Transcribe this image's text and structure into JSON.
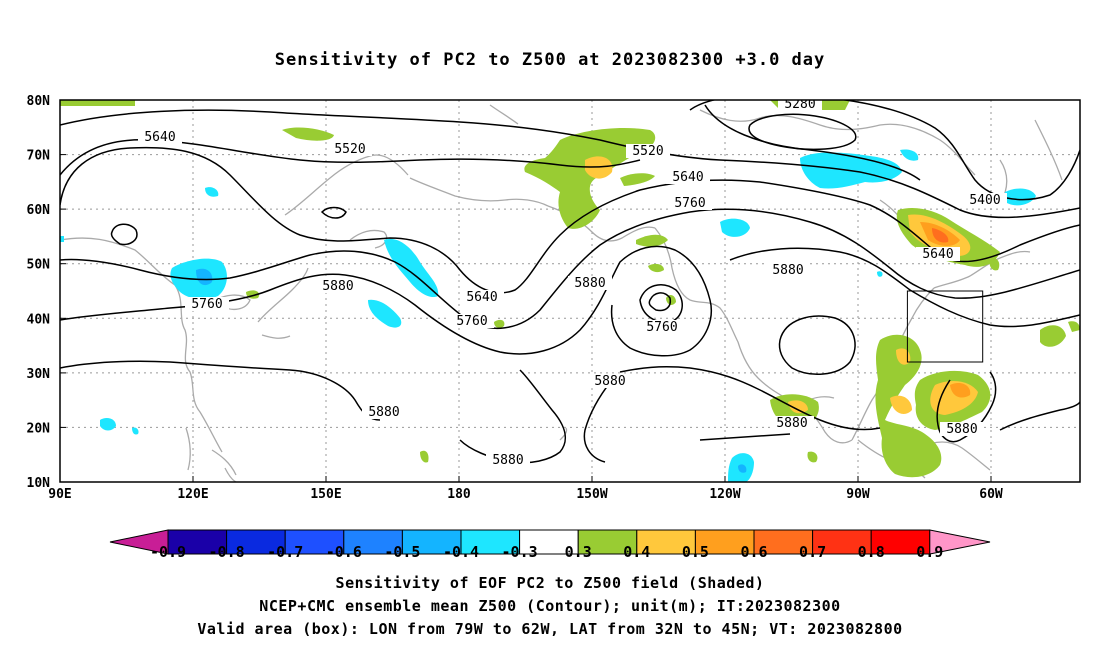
{
  "title": "Sensitivity of PC2 to Z500 at 2023082300 +3.0 day",
  "lat_ticks": [
    "80N",
    "70N",
    "60N",
    "50N",
    "40N",
    "30N",
    "20N",
    "10N"
  ],
  "lon_ticks": [
    "90E",
    "120E",
    "150E",
    "180",
    "150W",
    "120W",
    "90W",
    "60W"
  ],
  "contour_labels": [
    "5280",
    "5400",
    "5520",
    "5520",
    "5640",
    "5640",
    "5640",
    "5640",
    "5760",
    "5760",
    "5760",
    "5760",
    "5880",
    "5880",
    "5880",
    "5880",
    "5880",
    "5880",
    "5880"
  ],
  "colorbar": {
    "labels": [
      "-0.9",
      "-0.8",
      "-0.7",
      "-0.6",
      "-0.5",
      "-0.4",
      "-0.3",
      "0.3",
      "0.4",
      "0.5",
      "0.6",
      "0.7",
      "0.8",
      "0.9"
    ],
    "colors": [
      "#1a00a8",
      "#0a2ae0",
      "#1e50ff",
      "#1e82ff",
      "#14b4ff",
      "#1ee6ff",
      "#ffffff",
      "#99cc33",
      "#ffc83c",
      "#ff9f1e",
      "#ff6e1e",
      "#ff3214",
      "#ff0000"
    ],
    "low_end_color": "#c81e96",
    "high_end_color": "#ff96c8"
  },
  "footer": {
    "line1": "Sensitivity of EOF PC2 to Z500 field (Shaded)",
    "line2": "NCEP+CMC ensemble mean Z500 (Contour); unit(m); IT:2023082300",
    "line3": "Valid area (box): LON from 79W to 62W, LAT from 32N to 45N; VT: 2023082800"
  }
}
